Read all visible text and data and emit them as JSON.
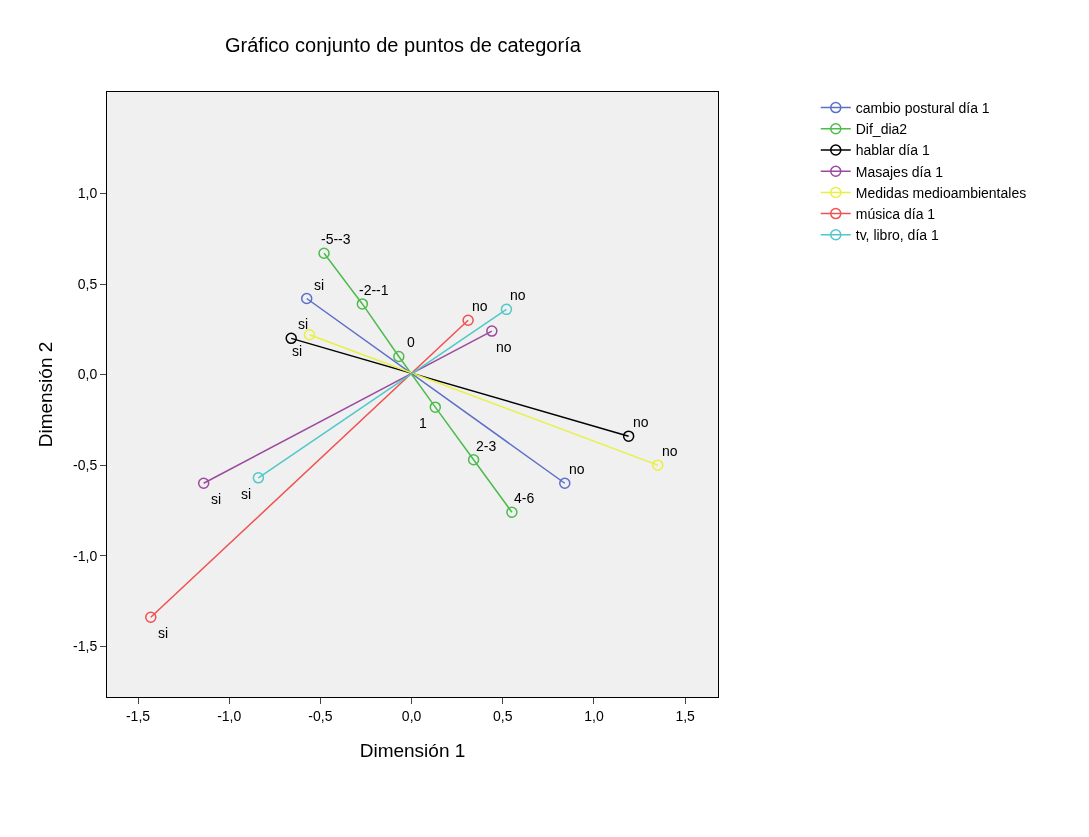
{
  "chart_data": {
    "type": "line",
    "title": "Gráfico conjunto de puntos de categoría",
    "xlabel": "Dimensión 1",
    "ylabel": "Dimensión 2",
    "xlim": [
      -1.67,
      1.68
    ],
    "ylim": [
      -1.78,
      1.56
    ],
    "xticks": [
      {
        "value": -1.5,
        "label": "-1,5"
      },
      {
        "value": -1,
        "label": "-1,0"
      },
      {
        "value": -0.5,
        "label": "-0,5"
      },
      {
        "value": 0,
        "label": "0,0"
      },
      {
        "value": 0.5,
        "label": "0,5"
      },
      {
        "value": 1,
        "label": "1,0"
      },
      {
        "value": 1.5,
        "label": "1,5"
      }
    ],
    "yticks": [
      {
        "value": -1.5,
        "label": "-1,5"
      },
      {
        "value": -1,
        "label": "-1,0"
      },
      {
        "value": -0.5,
        "label": "-0,5"
      },
      {
        "value": 0,
        "label": "0,0"
      },
      {
        "value": 0.5,
        "label": "0,5"
      },
      {
        "value": 1,
        "label": "1,0"
      }
    ],
    "grid": false,
    "legend": "top right",
    "marker": "circle",
    "series": [
      {
        "name": "cambio postural día 1",
        "color": "#5b6fc8",
        "x": [
          -0.575,
          0.84
        ],
        "values": [
          0.42,
          -0.6
        ]
      },
      {
        "name": "Dif_dia2",
        "color": "#4cbb4c",
        "x": [
          -0.48,
          -0.27,
          -0.07,
          0.13,
          0.34,
          0.55
        ],
        "values": [
          0.67,
          0.39,
          0.1,
          -0.18,
          -0.47,
          -0.76
        ]
      },
      {
        "name": "hablar día 1",
        "color": "#000000",
        "x": [
          -0.66,
          1.19
        ],
        "values": [
          0.2,
          -0.34
        ]
      },
      {
        "name": "Masajes día 1",
        "color": "#9b4a9e",
        "x": [
          -1.14,
          0.44
        ],
        "values": [
          -0.6,
          0.24
        ]
      },
      {
        "name": "Medidas medioambientales",
        "color": "#e8f040",
        "x": [
          -0.56,
          1.35
        ],
        "values": [
          0.22,
          -0.5
        ]
      },
      {
        "name": "música día 1",
        "color": "#f05050",
        "x": [
          -1.43,
          0.31
        ],
        "values": [
          -1.34,
          0.3
        ]
      },
      {
        "name": "tv, libro, día 1",
        "color": "#50c8c8",
        "x": [
          -0.84,
          0.52
        ],
        "values": [
          -0.57,
          0.36
        ]
      }
    ],
    "annotations": [
      {
        "text": "si",
        "x": -0.575,
        "y": 0.42
      },
      {
        "text": "no",
        "x": 0.84,
        "y": -0.6
      },
      {
        "text": "-5--3",
        "x": -0.48,
        "y": 0.67
      },
      {
        "text": "-2--1",
        "x": -0.27,
        "y": 0.39
      },
      {
        "text": "0",
        "x": -0.07,
        "y": 0.1
      },
      {
        "text": "1",
        "x": 0.13,
        "y": -0.18
      },
      {
        "text": "2-3",
        "x": 0.34,
        "y": -0.47
      },
      {
        "text": "4-6",
        "x": 0.55,
        "y": -0.76
      },
      {
        "text": "si",
        "x": -0.66,
        "y": 0.2
      },
      {
        "text": "no",
        "x": 1.19,
        "y": -0.34
      },
      {
        "text": "si",
        "x": -1.14,
        "y": -0.6
      },
      {
        "text": "no",
        "x": 0.44,
        "y": 0.24
      },
      {
        "text": "si",
        "x": -0.56,
        "y": 0.22
      },
      {
        "text": "no",
        "x": 1.35,
        "y": -0.5
      },
      {
        "text": "si",
        "x": -1.43,
        "y": -1.34
      },
      {
        "text": "no",
        "x": 0.31,
        "y": 0.3
      },
      {
        "text": "si",
        "x": -0.84,
        "y": -0.57
      },
      {
        "text": "no",
        "x": 0.52,
        "y": 0.36
      }
    ]
  }
}
